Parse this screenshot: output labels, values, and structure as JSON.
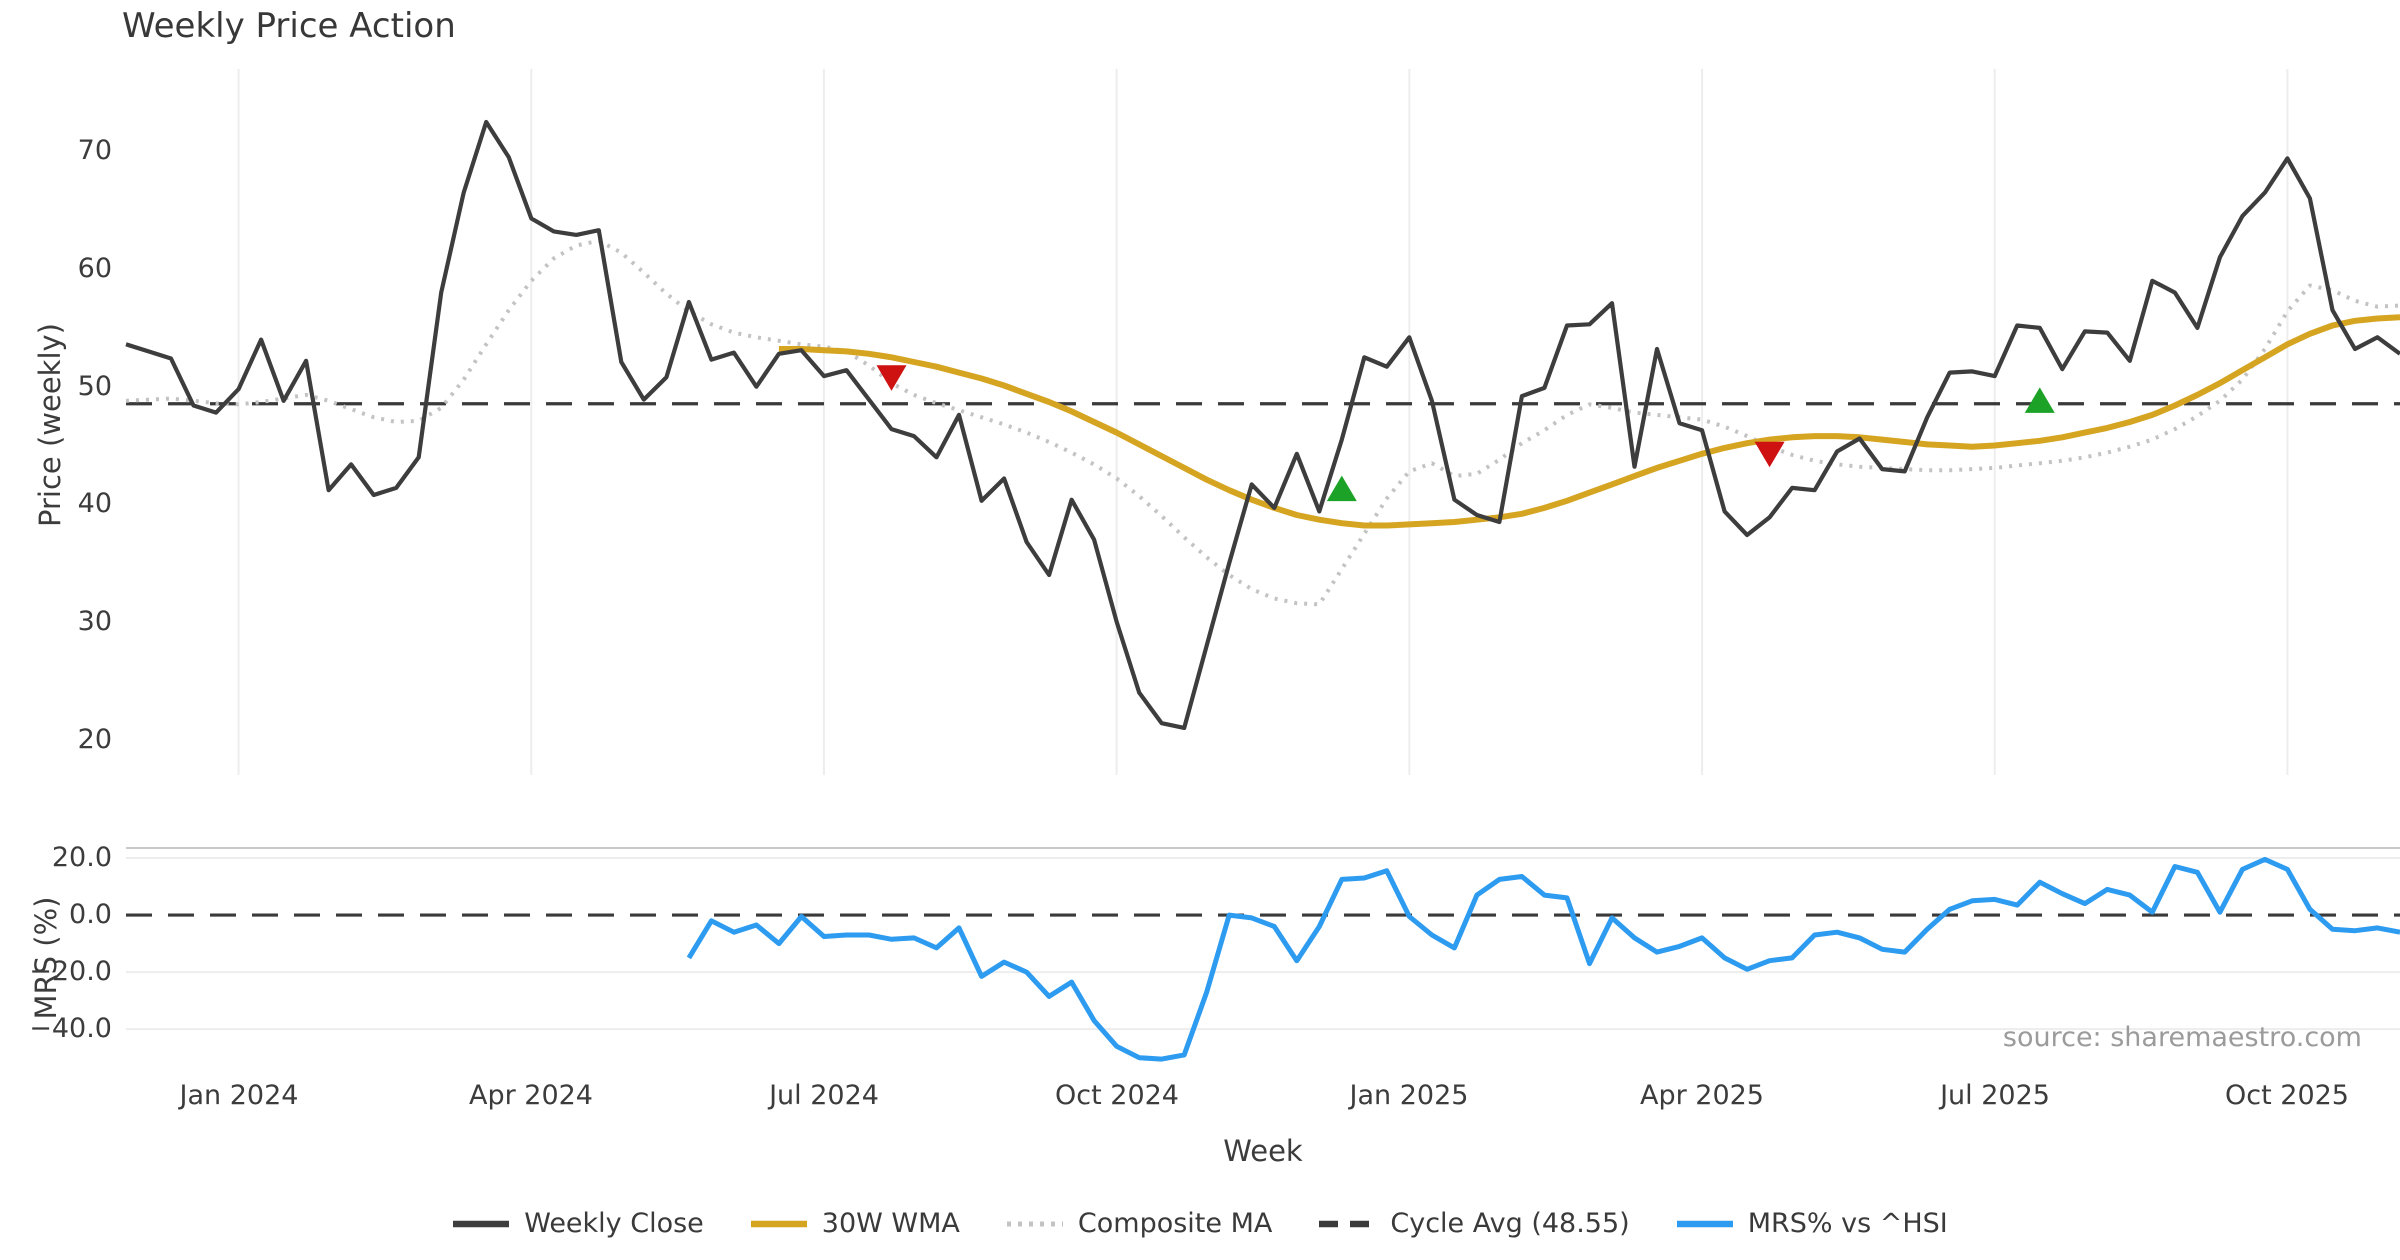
{
  "title": "Weekly Price Action",
  "source_note": "source: sharemaestro.com",
  "chart_data": [
    {
      "type": "line",
      "panel": "price",
      "title": "Weekly Price Action",
      "ylabel": "Price (weekly)",
      "xlabel": "Week",
      "ylim": [
        17,
        77
      ],
      "yticks": [
        70,
        60,
        50,
        40,
        30,
        20
      ],
      "grid": "vertical-only",
      "x_unit": "week_index",
      "xticks": {
        "weeks": [
          5,
          18,
          31,
          44,
          57,
          70,
          83,
          96
        ],
        "labels": [
          "Jan 2024",
          "Apr 2024",
          "Jul 2024",
          "Oct 2024",
          "Jan 2025",
          "Apr 2025",
          "Jul 2025",
          "Oct 2025"
        ]
      },
      "cycle_avg": 48.55,
      "series": [
        {
          "name": "Weekly Close",
          "start_week": 0,
          "values": [
            53.6,
            53.0,
            52.4,
            48.4,
            47.8,
            49.8,
            54.0,
            48.8,
            52.2,
            41.2,
            43.4,
            40.8,
            41.4,
            44.0,
            58.0,
            66.5,
            72.5,
            69.5,
            64.3,
            63.2,
            62.9,
            63.3,
            52.1,
            48.9,
            50.8,
            57.2,
            52.3,
            52.9,
            50.0,
            52.8,
            53.1,
            50.9,
            51.4,
            48.9,
            46.4,
            45.8,
            44.0,
            47.6,
            40.3,
            42.2,
            36.8,
            34.0,
            40.4,
            37.0,
            30.0,
            24.0,
            21.4,
            21.0,
            28.0,
            35.0,
            41.7,
            39.7,
            44.3,
            39.4,
            45.5,
            52.5,
            51.7,
            54.2,
            48.8,
            40.4,
            39.1,
            38.5,
            49.2,
            49.9,
            55.2,
            55.3,
            57.1,
            43.2,
            53.2,
            46.9,
            46.3,
            39.4,
            37.4,
            38.9,
            41.4,
            41.2,
            44.5,
            45.6,
            43.0,
            42.8,
            47.4,
            51.2,
            51.3,
            50.9,
            55.2,
            55.0,
            51.5,
            54.7,
            54.6,
            52.2,
            59.0,
            58.0,
            55.0,
            61.0,
            64.5,
            66.5,
            69.4,
            66.0,
            56.5,
            53.2,
            54.2,
            52.8
          ]
        },
        {
          "name": "30W WMA",
          "start_week": 29,
          "values": [
            53.2,
            53.2,
            53.1,
            53.0,
            52.8,
            52.5,
            52.1,
            51.7,
            51.2,
            50.7,
            50.1,
            49.4,
            48.7,
            47.9,
            47.0,
            46.1,
            45.1,
            44.1,
            43.1,
            42.1,
            41.2,
            40.4,
            39.7,
            39.1,
            38.7,
            38.4,
            38.2,
            38.2,
            38.3,
            38.4,
            38.5,
            38.7,
            38.9,
            39.2,
            39.7,
            40.3,
            41.0,
            41.7,
            42.4,
            43.1,
            43.7,
            44.3,
            44.8,
            45.2,
            45.5,
            45.7,
            45.8,
            45.8,
            45.7,
            45.5,
            45.3,
            45.1,
            45.0,
            44.9,
            45.0,
            45.2,
            45.4,
            45.7,
            46.1,
            46.5,
            47.0,
            47.6,
            48.4,
            49.3,
            50.3,
            51.4,
            52.5,
            53.6,
            54.5,
            55.2,
            55.6,
            55.8,
            55.9
          ]
        },
        {
          "name": "Composite MA",
          "start_week": 0,
          "values": [
            48.8,
            48.9,
            49.0,
            48.8,
            48.6,
            48.5,
            48.7,
            49.0,
            49.3,
            48.8,
            48.1,
            47.4,
            47.0,
            47.1,
            48.2,
            50.6,
            53.6,
            56.5,
            59.0,
            60.9,
            62.0,
            62.4,
            61.4,
            59.7,
            57.9,
            56.4,
            55.3,
            54.6,
            54.2,
            53.9,
            53.6,
            53.4,
            53.0,
            51.8,
            50.3,
            49.3,
            48.6,
            48.0,
            47.4,
            46.8,
            46.1,
            45.3,
            44.4,
            43.4,
            42.2,
            40.7,
            39.0,
            37.2,
            35.5,
            34.0,
            32.8,
            32.0,
            31.6,
            31.5,
            34.5,
            37.5,
            40.5,
            42.8,
            43.5,
            42.4,
            42.6,
            43.8,
            45.2,
            46.3,
            47.6,
            48.5,
            48.2,
            47.8,
            47.6,
            47.4,
            47.2,
            46.6,
            45.8,
            44.9,
            44.2,
            43.7,
            43.4,
            43.2,
            43.1,
            43.0,
            42.9,
            42.9,
            43.0,
            43.1,
            43.3,
            43.5,
            43.7,
            44.0,
            44.4,
            44.9,
            45.5,
            46.4,
            47.5,
            48.8,
            50.6,
            53.2,
            56.4,
            58.6,
            58.2,
            57.3,
            56.8,
            56.9
          ]
        }
      ],
      "markers": [
        {
          "week": 34,
          "value": 50.8,
          "shape": "triangle-down",
          "color_key": "signal_red"
        },
        {
          "week": 54,
          "value": 41.3,
          "shape": "triangle-up",
          "color_key": "signal_green"
        },
        {
          "week": 73,
          "value": 44.3,
          "shape": "triangle-down",
          "color_key": "signal_red"
        },
        {
          "week": 85,
          "value": 48.8,
          "shape": "triangle-up",
          "color_key": "signal_green"
        }
      ]
    },
    {
      "type": "line",
      "panel": "mrs",
      "ylabel": "MRS (%)",
      "ylim": [
        -51.5,
        23.5
      ],
      "yticks": [
        20.0,
        0.0,
        -20.0,
        -40.0
      ],
      "ytick_labels": [
        "20.0",
        "0.0",
        "−20.0",
        "−40.0"
      ],
      "zero_line_dashed": true,
      "series": [
        {
          "name": "MRS% vs ^HSI",
          "start_week": 25,
          "values": [
            -15,
            -2,
            -6,
            -3.5,
            -10,
            -0.5,
            -7.5,
            -7,
            -7,
            -8.5,
            -8,
            -11.5,
            -4.5,
            -21.5,
            -16.5,
            -20,
            -28.5,
            -23.5,
            -37,
            -46,
            -50,
            -50.5,
            -49,
            -27,
            0,
            -1,
            -4,
            -16,
            -4,
            12.5,
            13,
            15.5,
            -0.5,
            -7,
            -11.5,
            7,
            12.5,
            13.5,
            7,
            6,
            -17,
            -1,
            -8,
            -13,
            -11,
            -8,
            -15,
            -19,
            -16,
            -15,
            -7,
            -6,
            -8,
            -12,
            -13,
            -5,
            2,
            5,
            5.5,
            3.5,
            11.5,
            7.5,
            4,
            9,
            7,
            1,
            17,
            15,
            1,
            16,
            19.5,
            16,
            2,
            -5,
            -5.5,
            -4.5,
            -6
          ]
        }
      ]
    }
  ],
  "legend": {
    "items": [
      {
        "label": "Weekly Close",
        "style": "solid",
        "color_key": "close"
      },
      {
        "label": "30W WMA",
        "style": "solid",
        "color_key": "wma"
      },
      {
        "label": "Composite MA",
        "style": "dotted",
        "color_key": "composite"
      },
      {
        "label": "Cycle Avg (48.55)",
        "style": "dashed",
        "color_key": "cycle"
      },
      {
        "label": "MRS% vs ^HSI",
        "style": "solid",
        "color_key": "mrs"
      }
    ]
  },
  "colors": {
    "close": "#3d3d3d",
    "wma": "#D5A421",
    "composite": "#c3c3c3",
    "cycle": "#3a3a3a",
    "mrs": "#2D9BF0",
    "signal_red": "#CE1111",
    "signal_green": "#1CA327",
    "grid": "#ededed",
    "spine": "#c9c9c9",
    "text": "#3c3c3c",
    "muted": "#9b9b9b"
  }
}
